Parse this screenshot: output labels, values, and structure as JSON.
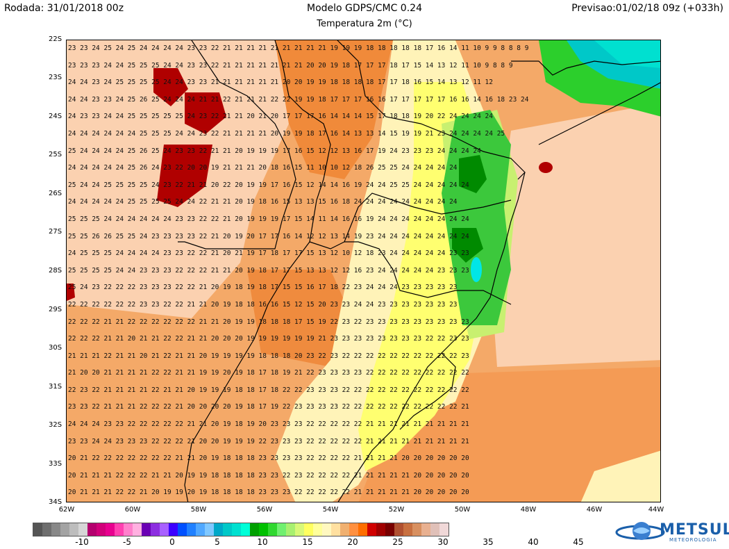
{
  "header": {
    "run": "Rodada: 31/01/2018 00z",
    "model": "Modelo GDPS/CMC 0.24",
    "forecast": "Previsao:01/02/18 09z (+033h)",
    "subtitle": "Temperatura 2m (°C)"
  },
  "axes": {
    "lat_labels": [
      "22S",
      "23S",
      "24S",
      "25S",
      "26S",
      "27S",
      "28S",
      "29S",
      "30S",
      "31S",
      "32S",
      "33S",
      "34S"
    ],
    "lon_labels": [
      "62W",
      "60W",
      "58W",
      "56W",
      "54W",
      "52W",
      "50W",
      "48W",
      "46W",
      "44W"
    ]
  },
  "colorbar": {
    "colors": [
      "#555555",
      "#6e6e6e",
      "#888888",
      "#a3a3a3",
      "#bdbdbd",
      "#d6d6d6",
      "#b4006e",
      "#d1007a",
      "#e8008f",
      "#ff40b0",
      "#ff80cc",
      "#ffb0e0",
      "#6a00b4",
      "#8c2ee0",
      "#a860ff",
      "#3c00ff",
      "#0050ff",
      "#2080ff",
      "#50a8ff",
      "#80c8ff",
      "#00a8c8",
      "#00c8c8",
      "#00e0d0",
      "#00ffd8",
      "#00a000",
      "#00c000",
      "#30d830",
      "#70f070",
      "#a8f070",
      "#d8f878",
      "#ffff60",
      "#ffff9c",
      "#fff8c0",
      "#ffe0a0",
      "#f0b070",
      "#ff9040",
      "#ff6e00",
      "#d00000",
      "#a00000",
      "#780000",
      "#b05030",
      "#c87040",
      "#d89060",
      "#e8b090",
      "#e0c0b8",
      "#f0d8d8"
    ],
    "labels": [
      "-10",
      "-5",
      "0",
      "5",
      "10",
      "15",
      "20",
      "25",
      "30",
      "35",
      "40",
      "45"
    ]
  },
  "logo": {
    "name": "METSUL",
    "sub": "METEOROLOGIA"
  },
  "grid_rows": [
    "23 23 24 25 24 25 24 24 24 24 23 23 22 21 21 21 21 21 21 21 21 21 19 19 19 18 18 18 18 18 17 16 14 11 10 9 9 8 8 8 9",
    "23 23 23 24 24 25 25 25 24 24 23 23 22 21 21 21 21 21 21 21 20 20 19 18 17 17 17 18 17 15 14 13 12 11 10 9 8 8 9",
    "24 24 23 24 25 25 25 25 24 24 23 23 21 21 21 21 21 21 20 20 19 19 18 18 18 18 17 17 18 16 15 14 13 12 11 12",
    "24 24 23 23 24 25 26 25 24 24 24 21 21 22 21 21 21 22 22 19 19 18 17 17 17 16 16 17 17 17 17 17 16 16 14 16 18 23 24",
    "24 23 23 24 24 25 25 25 25 25 24 23 22 21 21 20 21 20 17 17 17 16 14 14 14 15 17 18 18 19 20 22 24 24 24 24",
    "24 24 24 24 24 24 25 25 25 24 24 23 22 21 21 21 21 20 19 19 18 17 16 14 13 13 14 15 19 19 21 23 24 24 24 24 25",
    "25 24 24 24 24 25 26 25 24 23 23 22 21 21 20 19 19 19 17 16 15 12 12 13 16 17 19 24 23 23 23 24 24 24 24",
    "24 24 24 24 24 25 26 24 23 22 20 20 19 21 21 21 20 18 16 15 11 10 10 12 18 26 25 25 24 24 24 24 24",
    "25 24 24 25 25 25 25 24 23 22 21 21 20 22 20 19 19 17 16 15 12 14 14 16 19 24 24 25 25 24 24 24 24 24",
    "24 24 24 24 24 25 25 25 25 24 24 22 21 21 20 19 18 16 15 13 13 15 16 18 24 24 24 24 24 24 24 24 24",
    "25 25 25 24 24 24 24 24 24 23 23 22 22 21 20 19 19 19 17 15 14 11 14 16 16 19 24 24 24 24 24 24 24 24",
    "25 25 26 26 25 25 24 23 23 23 23 22 21 20 19 20 17 17 16 14 12 12 13 14 19 23 24 24 24 24 24 24 24 24",
    "24 25 25 25 24 24 24 24 23 23 22 22 21 20 21 19 17 18 17 17 15 13 12 10 12 18 23 24 24 24 24 24 23 23",
    "25 25 25 25 24 24 23 23 23 22 22 22 21 21 20 19 18 17 17 15 13 13 12 12 16 23 24 24 24 24 24 23 23 23",
    "25 24 23 22 22 22 23 23 23 22 22 21 20 19 18 19 18 17 15 15 16 17 18 22 23 24 24 24 23 23 23 23 23",
    "22 22 22 22 22 22 23 23 22 22 21 21 20 19 18 18 16 16 15 12 15 20 23 23 24 24 23 23 23 23 23 23 23",
    "22 22 22 21 21 22 22 22 22 22 22 21 21 20 19 19 18 18 18 17 15 19 22 23 22 23 23 23 23 23 23 23 23 23",
    "22 22 22 21 21 20 21 21 22 22 21 21 20 20 20 19 19 19 19 19 19 21 23 23 23 23 23 23 23 23 22 22 23 23",
    "21 21 21 22 21 21 20 21 22 21 21 20 19 19 19 19 18 18 18 20 23 22 23 22 22 22 22 22 22 22 22 22 22 23",
    "21 20 20 21 21 21 21 22 22 21 21 19 19 20 19 18 17 18 19 21 22 23 23 23 23 22 22 22 22 22 22 22 22 22",
    "22 23 22 21 21 21 21 22 21 21 20 19 19 19 18 18 17 18 22 22 23 23 23 22 22 22 22 22 22 22 22 22 22 22",
    "23 23 22 21 21 21 22 22 22 21 20 20 20 20 19 18 17 19 22 23 23 23 23 22 22 22 22 22 22 22 22 22 22 21",
    "24 24 24 23 23 22 22 22 22 22 21 21 20 19 18 19 20 23 23 23 22 22 22 22 22 21 21 21 21 21 21 21 21 21",
    "23 23 24 24 23 23 23 22 22 22 21 20 20 19 19 19 22 23 23 23 22 22 22 22 22 21 21 21 21 21 21 21 21 21",
    "20 21 22 22 22 22 22 22 22 21 21 20 19 18 18 18 23 23 23 23 22 22 22 22 21 21 21 21 20 20 20 20 20 20",
    "20 21 21 21 22 22 22 21 21 20 19 19 18 18 18 18 23 23 22 23 22 22 22 22 21 21 21 21 21 20 20 20 20 20",
    "20 21 21 21 22 22 21 20 19 19 20 19 18 18 18 18 23 23 23 22 22 22 22 22 21 21 21 21 21 20 20 20 20 20"
  ]
}
